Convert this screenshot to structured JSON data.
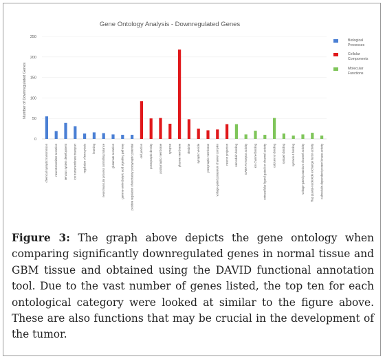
{
  "chart_data": {
    "type": "bar",
    "title": "Gene Ontology Analysis - Downregulated Genes",
    "ylabel": "Number of Downregulated Genes",
    "xlabel": "",
    "ylim": [
      0,
      250
    ],
    "yticks": [
      0,
      50,
      100,
      150,
      200,
      250
    ],
    "grid": true,
    "legend_position": "right",
    "series": [
      {
        "name": "Biological Processes",
        "color": "#4a7fd4"
      },
      {
        "name": "Cellular Components",
        "color": "#e0181b"
      },
      {
        "name": "Molecular Functions",
        "color": "#7fc55a"
      }
    ],
    "categories": [
      "chemical synaptic transmission",
      "neurotransmitter secretion",
      "nervous system development",
      "ion transmembrane transport",
      "regulation of exocytosis",
      "learning",
      "neuromuscular process controlling balance",
      "glutamate secretion",
      "gamma-aminobutyric acid signaling pathway",
      "positive regulation of excitatory postsynaptic potential",
      "cell junction",
      "postsynaptic density",
      "postsynaptic membrane",
      "synapse",
      "plasma membrane",
      "dendrite",
      "synaptic vesicle",
      "presynaptic membrane",
      "voltage-gated potassium channel complex",
      "neuron projection",
      "calmodulin binding",
      "GABA-A receptor activity",
      "ion channel binding",
      "extracellular ligand-gated ion channel activity",
      "calcium ion binding",
      "syntaxin binding",
      "syntaxin-1 binding",
      "voltage-gated potassium channel activity",
      "Rap guanyl-nucleotide exchange factor activity",
      "calmodulin-dependent protein kinase activity"
    ],
    "values": [
      55,
      19,
      39,
      31,
      13,
      16,
      14,
      11,
      10,
      10,
      92,
      50,
      51,
      37,
      218,
      48,
      25,
      21,
      23,
      36,
      36,
      11,
      20,
      10,
      51,
      13,
      8,
      11,
      15,
      8
    ],
    "series_index": [
      0,
      0,
      0,
      0,
      0,
      0,
      0,
      0,
      0,
      0,
      1,
      1,
      1,
      1,
      1,
      1,
      1,
      1,
      1,
      1,
      2,
      2,
      2,
      2,
      2,
      2,
      2,
      2,
      2,
      2
    ]
  },
  "caption": {
    "label": "Figure 3:",
    "text": " The graph above depicts the gene ontology when comparing significantly downregulated genes in normal tissue and GBM tissue and obtained using the DAVID functional annotation tool. Due to the vast number of genes listed, the top ten for each ontological category were looked at similar to the figure above. These are also functions that may be crucial in the development of the tumor."
  }
}
